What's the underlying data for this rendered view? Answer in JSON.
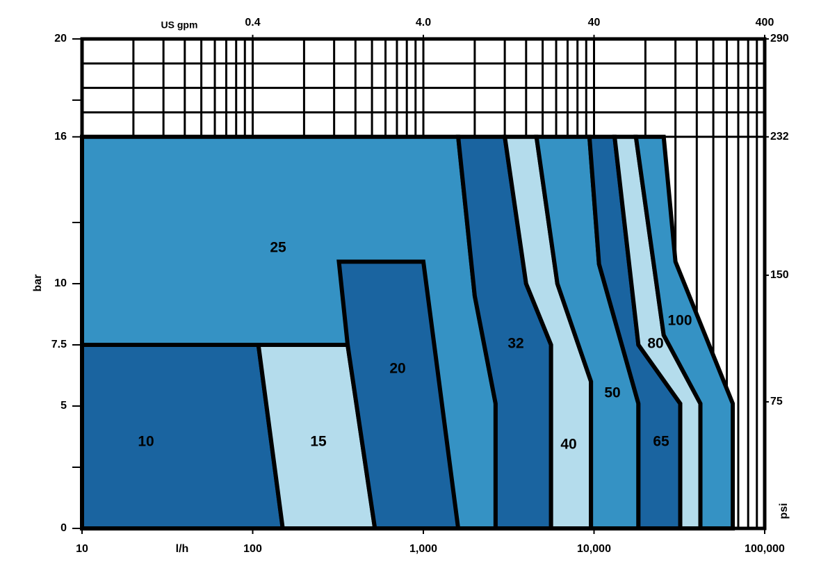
{
  "chart_data": {
    "type": "area-map",
    "x_label": "l/h",
    "x2_label": "US gpm",
    "y_label": "bar",
    "y2_label": "psi",
    "x_log": true,
    "grid": true,
    "xlim": [
      10,
      100000
    ],
    "xticks": [
      10,
      100,
      {
        "value": 1000,
        "label": "1,000"
      },
      {
        "value": 10000,
        "label": "10,000"
      },
      {
        "value": 100000,
        "label": "100,000"
      }
    ],
    "x2lim": [
      0.04,
      400
    ],
    "x2ticks": [
      0.4,
      {
        "value": 4,
        "label": "4.0"
      },
      40,
      400
    ],
    "ylim": [
      0,
      20
    ],
    "yticks": [
      0,
      5,
      7.5,
      10,
      16,
      20
    ],
    "yminorticks": [
      2.5,
      12.5,
      17.5
    ],
    "ygrid": [
      16,
      17,
      18,
      19,
      20
    ],
    "y2lim": [
      0,
      290
    ],
    "y2ticks": [
      75,
      150,
      232,
      290
    ],
    "regions": [
      {
        "name": "25",
        "color": "#3592c4",
        "x": [
          10,
          10,
          1600,
          2000,
          2650,
          2650
        ],
        "y": [
          0,
          16,
          16,
          9.5,
          5.1,
          0
        ]
      },
      {
        "name": "10",
        "color": "#1a64a0",
        "x": [
          10,
          10,
          108,
          150
        ],
        "y": [
          0,
          7.5,
          7.5,
          0
        ]
      },
      {
        "name": "15",
        "color": "#b4dcec",
        "x": [
          108,
          360,
          520,
          150
        ],
        "y": [
          7.5,
          7.5,
          0,
          0
        ]
      },
      {
        "name": "20",
        "color": "#1a64a0",
        "x": [
          320,
          1000,
          1600,
          520,
          360
        ],
        "y": [
          10.9,
          10.9,
          0,
          0,
          7.5
        ]
      },
      {
        "name": "32",
        "color": "#1a64a0",
        "x": [
          1600,
          3000,
          4000,
          5600,
          5600,
          2650,
          2650,
          2000
        ],
        "y": [
          16,
          16,
          10,
          7.5,
          0,
          0,
          5.1,
          9.5
        ]
      },
      {
        "name": "40",
        "color": "#b4dcec",
        "x": [
          3000,
          4600,
          6100,
          9600,
          9600,
          5600,
          5600,
          4000
        ],
        "y": [
          16,
          16,
          10,
          6,
          0,
          0,
          7.5,
          10
        ]
      },
      {
        "name": "50",
        "color": "#3592c4",
        "x": [
          4600,
          9400,
          10700,
          18200,
          18200,
          9600,
          9600,
          6100
        ],
        "y": [
          16,
          16,
          10.8,
          5.1,
          0,
          0,
          6,
          10
        ]
      },
      {
        "name": "65",
        "color": "#1a64a0",
        "x": [
          9400,
          13200,
          18200,
          32000,
          32000,
          18200,
          18200,
          10700
        ],
        "y": [
          16,
          16,
          7.5,
          5.1,
          0,
          0,
          5.1,
          10.8
        ]
      },
      {
        "name": "80",
        "color": "#b4dcec",
        "x": [
          13200,
          17600,
          25600,
          42000,
          42000,
          32000,
          32000,
          18200
        ],
        "y": [
          16,
          16,
          7.9,
          5.1,
          0,
          0,
          5.1,
          7.5
        ]
      },
      {
        "name": "100",
        "color": "#3592c4",
        "x": [
          17600,
          25600,
          30000,
          65000,
          65000,
          42000,
          42000,
          25600
        ],
        "y": [
          16,
          16,
          10.9,
          5.1,
          0,
          0,
          5.1,
          7.9
        ]
      }
    ]
  }
}
